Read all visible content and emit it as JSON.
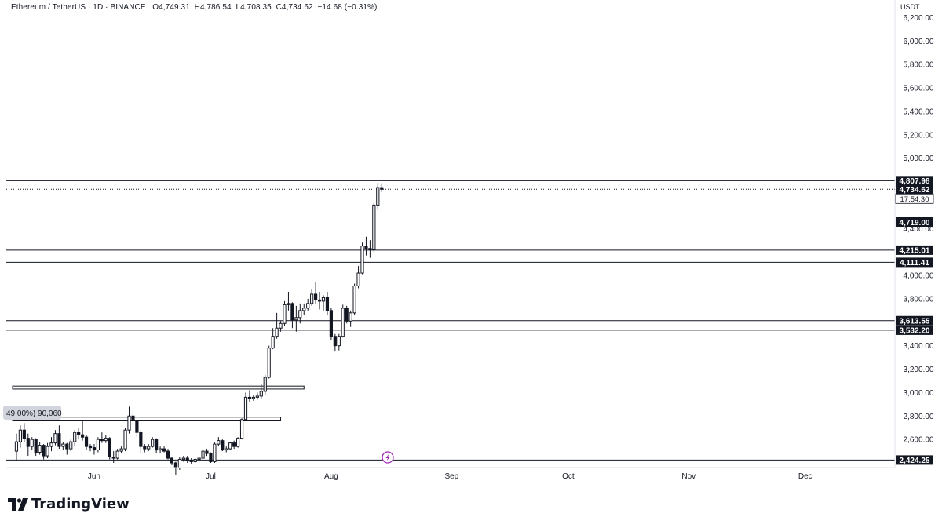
{
  "header": {
    "symbol": "Ethereum / TetherUS · 1D · BINANCE",
    "open": "O4,749.31",
    "high": "H4,786.54",
    "low": "L4,708.35",
    "close": "C4,734.62",
    "change": "−14.68 (−0.31%)"
  },
  "axis": {
    "currency": "USDT",
    "countdown": "17:54:30"
  },
  "brand": {
    "name": "TradingView"
  },
  "marker": {
    "label": "49.00%) 90,060"
  },
  "colors": {
    "background": "#ffffff",
    "candle": "#131722",
    "level_line": "#131722",
    "event_icon": "#9c27b0"
  },
  "chart_data": {
    "type": "candlestick",
    "y_axis": {
      "ticks": [
        "6,200.00",
        "6,000.00",
        "5,800.00",
        "5,600.00",
        "5,400.00",
        "5,200.00",
        "5,000.00",
        "4,400.00",
        "4,000.00",
        "3,800.00",
        "3,400.00",
        "3,200.00",
        "3,000.00",
        "2,800.00",
        "2,600.00"
      ],
      "tick_values": [
        6200,
        6000,
        5800,
        5600,
        5400,
        5200,
        5000,
        4400,
        4000,
        3800,
        3400,
        3200,
        3000,
        2800,
        2600
      ],
      "range": [
        2360,
        6350
      ],
      "side": "right"
    },
    "x_axis": {
      "labels": [
        "Jun",
        "Jul",
        "Aug",
        "Sep",
        "Oct",
        "Nov",
        "Dec"
      ],
      "label_dates": [
        "2025-06-01",
        "2025-07-01",
        "2025-08-01",
        "2025-09-01",
        "2025-10-01",
        "2025-11-01",
        "2025-12-01"
      ],
      "start_date": "2025-05-11"
    },
    "price_labels": [
      {
        "text": "4,807.98",
        "value": 4807.98
      },
      {
        "text": "4,734.62",
        "value": 4734.62
      },
      {
        "text": "4,719.00",
        "value": 4719.0
      },
      {
        "text": "4,215.01",
        "value": 4215.01
      },
      {
        "text": "4,111.41",
        "value": 4111.41
      },
      {
        "text": "3,613.55",
        "value": 3613.55
      },
      {
        "text": "3,532.20",
        "value": 3532.2
      },
      {
        "text": "2,424.25",
        "value": 2424.25
      }
    ],
    "horizontal_levels": [
      4807.98,
      4215.01,
      4111.41,
      3613.55,
      3532.2,
      2424.25
    ],
    "current_price": 4734.62,
    "boxes": [
      {
        "top": 3055,
        "bottom": 3030,
        "from": "2025-05-11",
        "to": "2025-07-25"
      },
      {
        "top": 2790,
        "bottom": 2765,
        "from": "2025-05-11",
        "to": "2025-07-19"
      }
    ],
    "candles": [
      {
        "d": "2025-05-12",
        "o": 2500,
        "h": 2650,
        "l": 2420,
        "c": 2580
      },
      {
        "d": "2025-05-13",
        "o": 2580,
        "h": 2720,
        "l": 2530,
        "c": 2680
      },
      {
        "d": "2025-05-14",
        "o": 2680,
        "h": 2740,
        "l": 2580,
        "c": 2610
      },
      {
        "d": "2025-05-15",
        "o": 2610,
        "h": 2650,
        "l": 2460,
        "c": 2540
      },
      {
        "d": "2025-05-16",
        "o": 2540,
        "h": 2620,
        "l": 2510,
        "c": 2600
      },
      {
        "d": "2025-05-17",
        "o": 2600,
        "h": 2610,
        "l": 2460,
        "c": 2490
      },
      {
        "d": "2025-05-18",
        "o": 2490,
        "h": 2580,
        "l": 2470,
        "c": 2550
      },
      {
        "d": "2025-05-19",
        "o": 2550,
        "h": 2560,
        "l": 2430,
        "c": 2460
      },
      {
        "d": "2025-05-20",
        "o": 2460,
        "h": 2570,
        "l": 2440,
        "c": 2540
      },
      {
        "d": "2025-05-21",
        "o": 2540,
        "h": 2620,
        "l": 2500,
        "c": 2570
      },
      {
        "d": "2025-05-22",
        "o": 2570,
        "h": 2680,
        "l": 2550,
        "c": 2650
      },
      {
        "d": "2025-05-23",
        "o": 2650,
        "h": 2720,
        "l": 2520,
        "c": 2540
      },
      {
        "d": "2025-05-24",
        "o": 2540,
        "h": 2580,
        "l": 2510,
        "c": 2560
      },
      {
        "d": "2025-05-25",
        "o": 2560,
        "h": 2570,
        "l": 2470,
        "c": 2520
      },
      {
        "d": "2025-05-26",
        "o": 2520,
        "h": 2600,
        "l": 2500,
        "c": 2580
      },
      {
        "d": "2025-05-27",
        "o": 2580,
        "h": 2680,
        "l": 2540,
        "c": 2660
      },
      {
        "d": "2025-05-28",
        "o": 2660,
        "h": 2700,
        "l": 2600,
        "c": 2640
      },
      {
        "d": "2025-05-29",
        "o": 2640,
        "h": 2760,
        "l": 2590,
        "c": 2620
      },
      {
        "d": "2025-05-30",
        "o": 2620,
        "h": 2640,
        "l": 2510,
        "c": 2540
      },
      {
        "d": "2025-05-31",
        "o": 2540,
        "h": 2560,
        "l": 2500,
        "c": 2530
      },
      {
        "d": "2025-06-01",
        "o": 2530,
        "h": 2560,
        "l": 2470,
        "c": 2510
      },
      {
        "d": "2025-06-02",
        "o": 2510,
        "h": 2620,
        "l": 2490,
        "c": 2600
      },
      {
        "d": "2025-06-03",
        "o": 2600,
        "h": 2660,
        "l": 2570,
        "c": 2590
      },
      {
        "d": "2025-06-04",
        "o": 2590,
        "h": 2640,
        "l": 2570,
        "c": 2610
      },
      {
        "d": "2025-06-05",
        "o": 2610,
        "h": 2620,
        "l": 2430,
        "c": 2450
      },
      {
        "d": "2025-06-06",
        "o": 2450,
        "h": 2500,
        "l": 2400,
        "c": 2440
      },
      {
        "d": "2025-06-07",
        "o": 2440,
        "h": 2520,
        "l": 2430,
        "c": 2500
      },
      {
        "d": "2025-06-08",
        "o": 2500,
        "h": 2540,
        "l": 2480,
        "c": 2520
      },
      {
        "d": "2025-06-09",
        "o": 2520,
        "h": 2700,
        "l": 2500,
        "c": 2680
      },
      {
        "d": "2025-06-10",
        "o": 2680,
        "h": 2880,
        "l": 2650,
        "c": 2800
      },
      {
        "d": "2025-06-11",
        "o": 2800,
        "h": 2860,
        "l": 2720,
        "c": 2760
      },
      {
        "d": "2025-06-12",
        "o": 2760,
        "h": 2770,
        "l": 2620,
        "c": 2660
      },
      {
        "d": "2025-06-13",
        "o": 2660,
        "h": 2680,
        "l": 2480,
        "c": 2540
      },
      {
        "d": "2025-06-14",
        "o": 2540,
        "h": 2560,
        "l": 2490,
        "c": 2520
      },
      {
        "d": "2025-06-15",
        "o": 2520,
        "h": 2560,
        "l": 2500,
        "c": 2540
      },
      {
        "d": "2025-06-16",
        "o": 2540,
        "h": 2620,
        "l": 2530,
        "c": 2600
      },
      {
        "d": "2025-06-17",
        "o": 2600,
        "h": 2610,
        "l": 2480,
        "c": 2510
      },
      {
        "d": "2025-06-18",
        "o": 2510,
        "h": 2540,
        "l": 2480,
        "c": 2520
      },
      {
        "d": "2025-06-19",
        "o": 2520,
        "h": 2540,
        "l": 2490,
        "c": 2500
      },
      {
        "d": "2025-06-20",
        "o": 2500,
        "h": 2520,
        "l": 2430,
        "c": 2440
      },
      {
        "d": "2025-06-21",
        "o": 2440,
        "h": 2450,
        "l": 2380,
        "c": 2400
      },
      {
        "d": "2025-06-22",
        "o": 2400,
        "h": 2410,
        "l": 2300,
        "c": 2360
      },
      {
        "d": "2025-06-23",
        "o": 2360,
        "h": 2450,
        "l": 2340,
        "c": 2430
      },
      {
        "d": "2025-06-24",
        "o": 2430,
        "h": 2460,
        "l": 2410,
        "c": 2440
      },
      {
        "d": "2025-06-25",
        "o": 2440,
        "h": 2460,
        "l": 2400,
        "c": 2420
      },
      {
        "d": "2025-06-26",
        "o": 2420,
        "h": 2440,
        "l": 2390,
        "c": 2410
      },
      {
        "d": "2025-06-27",
        "o": 2410,
        "h": 2440,
        "l": 2400,
        "c": 2430
      },
      {
        "d": "2025-06-28",
        "o": 2430,
        "h": 2450,
        "l": 2410,
        "c": 2440
      },
      {
        "d": "2025-06-29",
        "o": 2440,
        "h": 2510,
        "l": 2430,
        "c": 2500
      },
      {
        "d": "2025-06-30",
        "o": 2500,
        "h": 2520,
        "l": 2460,
        "c": 2480
      },
      {
        "d": "2025-07-01",
        "o": 2480,
        "h": 2490,
        "l": 2400,
        "c": 2410
      },
      {
        "d": "2025-07-02",
        "o": 2410,
        "h": 2580,
        "l": 2400,
        "c": 2560
      },
      {
        "d": "2025-07-03",
        "o": 2560,
        "h": 2620,
        "l": 2540,
        "c": 2590
      },
      {
        "d": "2025-07-04",
        "o": 2590,
        "h": 2600,
        "l": 2500,
        "c": 2510
      },
      {
        "d": "2025-07-05",
        "o": 2510,
        "h": 2540,
        "l": 2490,
        "c": 2520
      },
      {
        "d": "2025-07-06",
        "o": 2520,
        "h": 2580,
        "l": 2510,
        "c": 2570
      },
      {
        "d": "2025-07-07",
        "o": 2570,
        "h": 2590,
        "l": 2520,
        "c": 2540
      },
      {
        "d": "2025-07-08",
        "o": 2540,
        "h": 2620,
        "l": 2530,
        "c": 2610
      },
      {
        "d": "2025-07-09",
        "o": 2610,
        "h": 2780,
        "l": 2600,
        "c": 2770
      },
      {
        "d": "2025-07-10",
        "o": 2770,
        "h": 3000,
        "l": 2760,
        "c": 2960
      },
      {
        "d": "2025-07-11",
        "o": 2960,
        "h": 3020,
        "l": 2920,
        "c": 2950
      },
      {
        "d": "2025-07-12",
        "o": 2950,
        "h": 2980,
        "l": 2930,
        "c": 2960
      },
      {
        "d": "2025-07-13",
        "o": 2960,
        "h": 3000,
        "l": 2940,
        "c": 2970
      },
      {
        "d": "2025-07-14",
        "o": 2970,
        "h": 3070,
        "l": 2950,
        "c": 3010
      },
      {
        "d": "2025-07-15",
        "o": 3010,
        "h": 3150,
        "l": 2980,
        "c": 3130
      },
      {
        "d": "2025-07-16",
        "o": 3130,
        "h": 3400,
        "l": 3120,
        "c": 3380
      },
      {
        "d": "2025-07-17",
        "o": 3380,
        "h": 3550,
        "l": 3370,
        "c": 3480
      },
      {
        "d": "2025-07-18",
        "o": 3480,
        "h": 3680,
        "l": 3460,
        "c": 3550
      },
      {
        "d": "2025-07-19",
        "o": 3550,
        "h": 3610,
        "l": 3520,
        "c": 3590
      },
      {
        "d": "2025-07-20",
        "o": 3590,
        "h": 3780,
        "l": 3570,
        "c": 3750
      },
      {
        "d": "2025-07-21",
        "o": 3750,
        "h": 3860,
        "l": 3700,
        "c": 3760
      },
      {
        "d": "2025-07-22",
        "o": 3760,
        "h": 3770,
        "l": 3550,
        "c": 3620
      },
      {
        "d": "2025-07-23",
        "o": 3620,
        "h": 3740,
        "l": 3520,
        "c": 3640
      },
      {
        "d": "2025-07-24",
        "o": 3640,
        "h": 3760,
        "l": 3590,
        "c": 3700
      },
      {
        "d": "2025-07-25",
        "o": 3700,
        "h": 3760,
        "l": 3660,
        "c": 3720
      },
      {
        "d": "2025-07-26",
        "o": 3720,
        "h": 3800,
        "l": 3700,
        "c": 3760
      },
      {
        "d": "2025-07-27",
        "o": 3760,
        "h": 3880,
        "l": 3740,
        "c": 3840
      },
      {
        "d": "2025-07-28",
        "o": 3840,
        "h": 3940,
        "l": 3760,
        "c": 3790
      },
      {
        "d": "2025-07-29",
        "o": 3790,
        "h": 3860,
        "l": 3710,
        "c": 3780
      },
      {
        "d": "2025-07-30",
        "o": 3780,
        "h": 3830,
        "l": 3700,
        "c": 3810
      },
      {
        "d": "2025-07-31",
        "o": 3810,
        "h": 3860,
        "l": 3660,
        "c": 3700
      },
      {
        "d": "2025-08-01",
        "o": 3700,
        "h": 3720,
        "l": 3450,
        "c": 3480
      },
      {
        "d": "2025-08-02",
        "o": 3480,
        "h": 3500,
        "l": 3350,
        "c": 3400
      },
      {
        "d": "2025-08-03",
        "o": 3400,
        "h": 3500,
        "l": 3360,
        "c": 3480
      },
      {
        "d": "2025-08-04",
        "o": 3480,
        "h": 3750,
        "l": 3470,
        "c": 3720
      },
      {
        "d": "2025-08-05",
        "o": 3720,
        "h": 3740,
        "l": 3590,
        "c": 3610
      },
      {
        "d": "2025-08-06",
        "o": 3610,
        "h": 3700,
        "l": 3560,
        "c": 3680
      },
      {
        "d": "2025-08-07",
        "o": 3680,
        "h": 3930,
        "l": 3660,
        "c": 3910
      },
      {
        "d": "2025-08-08",
        "o": 3910,
        "h": 4080,
        "l": 3890,
        "c": 4020
      },
      {
        "d": "2025-08-09",
        "o": 4020,
        "h": 4280,
        "l": 4010,
        "c": 4250
      },
      {
        "d": "2025-08-10",
        "o": 4250,
        "h": 4330,
        "l": 4170,
        "c": 4230
      },
      {
        "d": "2025-08-11",
        "o": 4230,
        "h": 4300,
        "l": 4150,
        "c": 4220
      },
      {
        "d": "2025-08-12",
        "o": 4220,
        "h": 4620,
        "l": 4200,
        "c": 4600
      },
      {
        "d": "2025-08-13",
        "o": 4600,
        "h": 4790,
        "l": 4560,
        "c": 4750
      },
      {
        "d": "2025-08-14",
        "o": 4749.31,
        "h": 4786.54,
        "l": 4708.35,
        "c": 4734.62
      }
    ]
  }
}
